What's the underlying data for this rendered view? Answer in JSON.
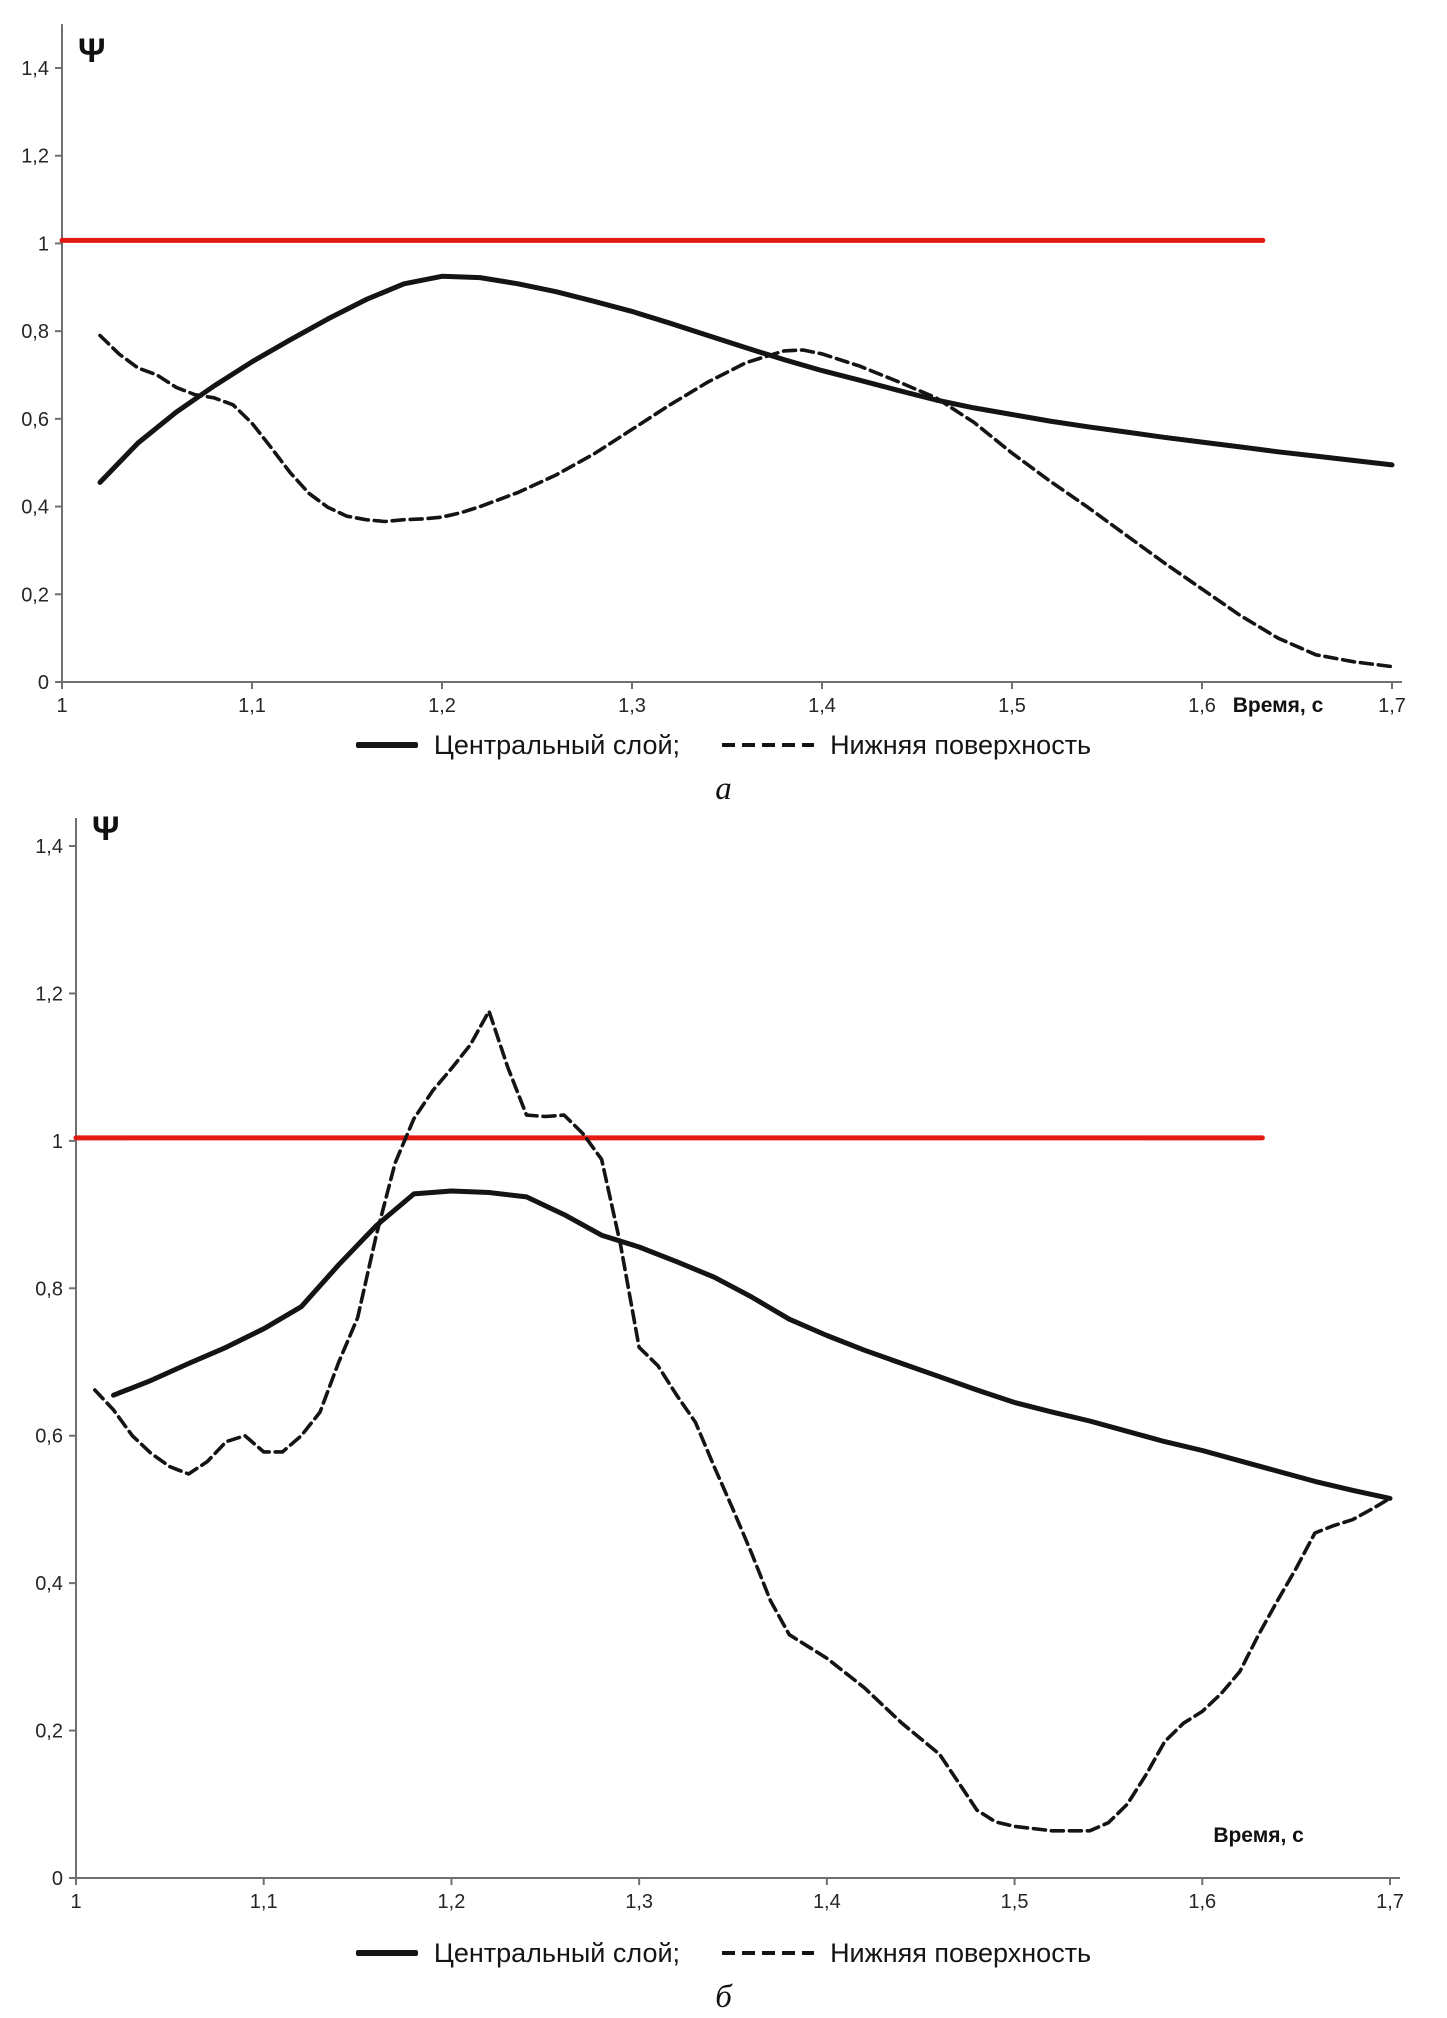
{
  "chart_data": [
    {
      "type": "line",
      "caption": "а",
      "title": "",
      "ylabel": "Ψ",
      "xlabel": "Время, с",
      "xlim": [
        1,
        1.7
      ],
      "ylim": [
        0,
        1.5
      ],
      "grid": false,
      "legend_position": "bottom",
      "x_label_position": "tick-row",
      "x_ticks": [
        "1",
        "1,1",
        "1,2",
        "1,3",
        "1,4",
        "1,5",
        "1,6",
        "1,7"
      ],
      "x_tick_values": [
        1,
        1.1,
        1.2,
        1.3,
        1.4,
        1.5,
        1.6,
        1.7
      ],
      "y_ticks": [
        "0",
        "0,2",
        "0,4",
        "0,6",
        "0,8",
        "1",
        "1,2",
        "1,4"
      ],
      "y_tick_values": [
        0,
        0.2,
        0.4,
        0.6,
        0.8,
        1,
        1.2,
        1.4
      ],
      "reference_line": {
        "y": 1.0,
        "x_start": 1.0,
        "x_end": 1.632,
        "color": "#e21a13"
      },
      "series": [
        {
          "name": "Центральный слой;",
          "style": "solid",
          "color": "#141414",
          "points": [
            [
              1.02,
              0.455
            ],
            [
              1.04,
              0.545
            ],
            [
              1.06,
              0.615
            ],
            [
              1.08,
              0.675
            ],
            [
              1.1,
              0.73
            ],
            [
              1.12,
              0.78
            ],
            [
              1.14,
              0.828
            ],
            [
              1.16,
              0.872
            ],
            [
              1.18,
              0.908
            ],
            [
              1.2,
              0.925
            ],
            [
              1.22,
              0.922
            ],
            [
              1.24,
              0.908
            ],
            [
              1.26,
              0.89
            ],
            [
              1.28,
              0.868
            ],
            [
              1.3,
              0.845
            ],
            [
              1.32,
              0.818
            ],
            [
              1.34,
              0.79
            ],
            [
              1.36,
              0.762
            ],
            [
              1.38,
              0.735
            ],
            [
              1.4,
              0.71
            ],
            [
              1.42,
              0.688
            ],
            [
              1.44,
              0.665
            ],
            [
              1.46,
              0.643
            ],
            [
              1.48,
              0.625
            ],
            [
              1.5,
              0.61
            ],
            [
              1.52,
              0.595
            ],
            [
              1.54,
              0.582
            ],
            [
              1.56,
              0.57
            ],
            [
              1.58,
              0.558
            ],
            [
              1.6,
              0.547
            ],
            [
              1.62,
              0.536
            ],
            [
              1.64,
              0.525
            ],
            [
              1.66,
              0.515
            ],
            [
              1.68,
              0.505
            ],
            [
              1.7,
              0.495
            ]
          ]
        },
        {
          "name": "Нижняя поверхность",
          "style": "dashed",
          "color": "#141414",
          "points": [
            [
              1.02,
              0.79
            ],
            [
              1.03,
              0.748
            ],
            [
              1.04,
              0.716
            ],
            [
              1.05,
              0.7
            ],
            [
              1.06,
              0.672
            ],
            [
              1.07,
              0.655
            ],
            [
              1.08,
              0.648
            ],
            [
              1.09,
              0.632
            ],
            [
              1.1,
              0.59
            ],
            [
              1.11,
              0.535
            ],
            [
              1.12,
              0.478
            ],
            [
              1.13,
              0.43
            ],
            [
              1.14,
              0.398
            ],
            [
              1.15,
              0.378
            ],
            [
              1.16,
              0.37
            ],
            [
              1.17,
              0.366
            ],
            [
              1.18,
              0.37
            ],
            [
              1.19,
              0.372
            ],
            [
              1.2,
              0.376
            ],
            [
              1.21,
              0.386
            ],
            [
              1.22,
              0.4
            ],
            [
              1.24,
              0.432
            ],
            [
              1.26,
              0.472
            ],
            [
              1.28,
              0.52
            ],
            [
              1.3,
              0.576
            ],
            [
              1.32,
              0.632
            ],
            [
              1.34,
              0.684
            ],
            [
              1.36,
              0.728
            ],
            [
              1.38,
              0.755
            ],
            [
              1.39,
              0.757
            ],
            [
              1.4,
              0.748
            ],
            [
              1.42,
              0.72
            ],
            [
              1.44,
              0.685
            ],
            [
              1.46,
              0.648
            ],
            [
              1.48,
              0.592
            ],
            [
              1.5,
              0.522
            ],
            [
              1.52,
              0.458
            ],
            [
              1.54,
              0.398
            ],
            [
              1.56,
              0.335
            ],
            [
              1.58,
              0.272
            ],
            [
              1.6,
              0.212
            ],
            [
              1.62,
              0.152
            ],
            [
              1.64,
              0.1
            ],
            [
              1.66,
              0.062
            ],
            [
              1.68,
              0.046
            ],
            [
              1.7,
              0.035
            ]
          ]
        }
      ]
    },
    {
      "type": "line",
      "caption": "б",
      "title": "",
      "ylabel": "Ψ",
      "xlabel": "Время, с",
      "xlim": [
        1,
        1.7
      ],
      "ylim": [
        0,
        1.5
      ],
      "grid": false,
      "legend_position": "bottom",
      "x_label_position": "above-axis",
      "x_ticks": [
        "1",
        "1,1",
        "1,2",
        "1,3",
        "1,4",
        "1,5",
        "1,6",
        "1,7"
      ],
      "x_tick_values": [
        1,
        1.1,
        1.2,
        1.3,
        1.4,
        1.5,
        1.6,
        1.7
      ],
      "y_ticks": [
        "0",
        "0,2",
        "0,4",
        "0,6",
        "0,8",
        "1",
        "1,2",
        "1,4"
      ],
      "y_tick_values": [
        0,
        0.2,
        0.4,
        0.6,
        0.8,
        1,
        1.2,
        1.4
      ],
      "reference_line": {
        "y": 1.0,
        "x_start": 1.0,
        "x_end": 1.632,
        "color": "#e21a13"
      },
      "series": [
        {
          "name": "Центральный слой;",
          "style": "solid",
          "color": "#141414",
          "points": [
            [
              1.02,
              0.655
            ],
            [
              1.04,
              0.675
            ],
            [
              1.06,
              0.698
            ],
            [
              1.08,
              0.72
            ],
            [
              1.1,
              0.745
            ],
            [
              1.12,
              0.775
            ],
            [
              1.14,
              0.832
            ],
            [
              1.16,
              0.885
            ],
            [
              1.18,
              0.928
            ],
            [
              1.2,
              0.932
            ],
            [
              1.22,
              0.93
            ],
            [
              1.24,
              0.924
            ],
            [
              1.26,
              0.9
            ],
            [
              1.28,
              0.872
            ],
            [
              1.3,
              0.856
            ],
            [
              1.32,
              0.836
            ],
            [
              1.34,
              0.815
            ],
            [
              1.36,
              0.788
            ],
            [
              1.38,
              0.758
            ],
            [
              1.4,
              0.736
            ],
            [
              1.42,
              0.716
            ],
            [
              1.44,
              0.698
            ],
            [
              1.46,
              0.68
            ],
            [
              1.48,
              0.662
            ],
            [
              1.5,
              0.645
            ],
            [
              1.52,
              0.632
            ],
            [
              1.54,
              0.62
            ],
            [
              1.56,
              0.606
            ],
            [
              1.58,
              0.592
            ],
            [
              1.6,
              0.58
            ],
            [
              1.62,
              0.566
            ],
            [
              1.64,
              0.552
            ],
            [
              1.66,
              0.538
            ],
            [
              1.68,
              0.526
            ],
            [
              1.7,
              0.515
            ]
          ]
        },
        {
          "name": "Нижняя поверхность",
          "style": "dashed",
          "color": "#141414",
          "points": [
            [
              1.01,
              0.662
            ],
            [
              1.02,
              0.635
            ],
            [
              1.03,
              0.6
            ],
            [
              1.04,
              0.576
            ],
            [
              1.05,
              0.558
            ],
            [
              1.06,
              0.548
            ],
            [
              1.07,
              0.565
            ],
            [
              1.08,
              0.592
            ],
            [
              1.09,
              0.6
            ],
            [
              1.1,
              0.578
            ],
            [
              1.11,
              0.578
            ],
            [
              1.12,
              0.6
            ],
            [
              1.13,
              0.632
            ],
            [
              1.14,
              0.7
            ],
            [
              1.15,
              0.76
            ],
            [
              1.16,
              0.872
            ],
            [
              1.17,
              0.97
            ],
            [
              1.18,
              1.03
            ],
            [
              1.19,
              1.068
            ],
            [
              1.2,
              1.098
            ],
            [
              1.21,
              1.13
            ],
            [
              1.22,
              1.176
            ],
            [
              1.23,
              1.1
            ],
            [
              1.24,
              1.035
            ],
            [
              1.25,
              1.033
            ],
            [
              1.26,
              1.035
            ],
            [
              1.27,
              1.01
            ],
            [
              1.28,
              0.975
            ],
            [
              1.29,
              0.86
            ],
            [
              1.3,
              0.72
            ],
            [
              1.31,
              0.695
            ],
            [
              1.32,
              0.655
            ],
            [
              1.33,
              0.618
            ],
            [
              1.34,
              0.558
            ],
            [
              1.35,
              0.5
            ],
            [
              1.36,
              0.44
            ],
            [
              1.37,
              0.376
            ],
            [
              1.38,
              0.33
            ],
            [
              1.4,
              0.298
            ],
            [
              1.42,
              0.258
            ],
            [
              1.44,
              0.21
            ],
            [
              1.46,
              0.168
            ],
            [
              1.47,
              0.13
            ],
            [
              1.48,
              0.092
            ],
            [
              1.49,
              0.076
            ],
            [
              1.5,
              0.07
            ],
            [
              1.52,
              0.064
            ],
            [
              1.54,
              0.064
            ],
            [
              1.55,
              0.075
            ],
            [
              1.56,
              0.1
            ],
            [
              1.57,
              0.14
            ],
            [
              1.58,
              0.185
            ],
            [
              1.59,
              0.21
            ],
            [
              1.6,
              0.226
            ],
            [
              1.61,
              0.25
            ],
            [
              1.62,
              0.28
            ],
            [
              1.63,
              0.33
            ],
            [
              1.64,
              0.376
            ],
            [
              1.65,
              0.42
            ],
            [
              1.66,
              0.468
            ],
            [
              1.67,
              0.478
            ],
            [
              1.68,
              0.486
            ],
            [
              1.69,
              0.5
            ],
            [
              1.7,
              0.515
            ]
          ]
        }
      ]
    }
  ]
}
